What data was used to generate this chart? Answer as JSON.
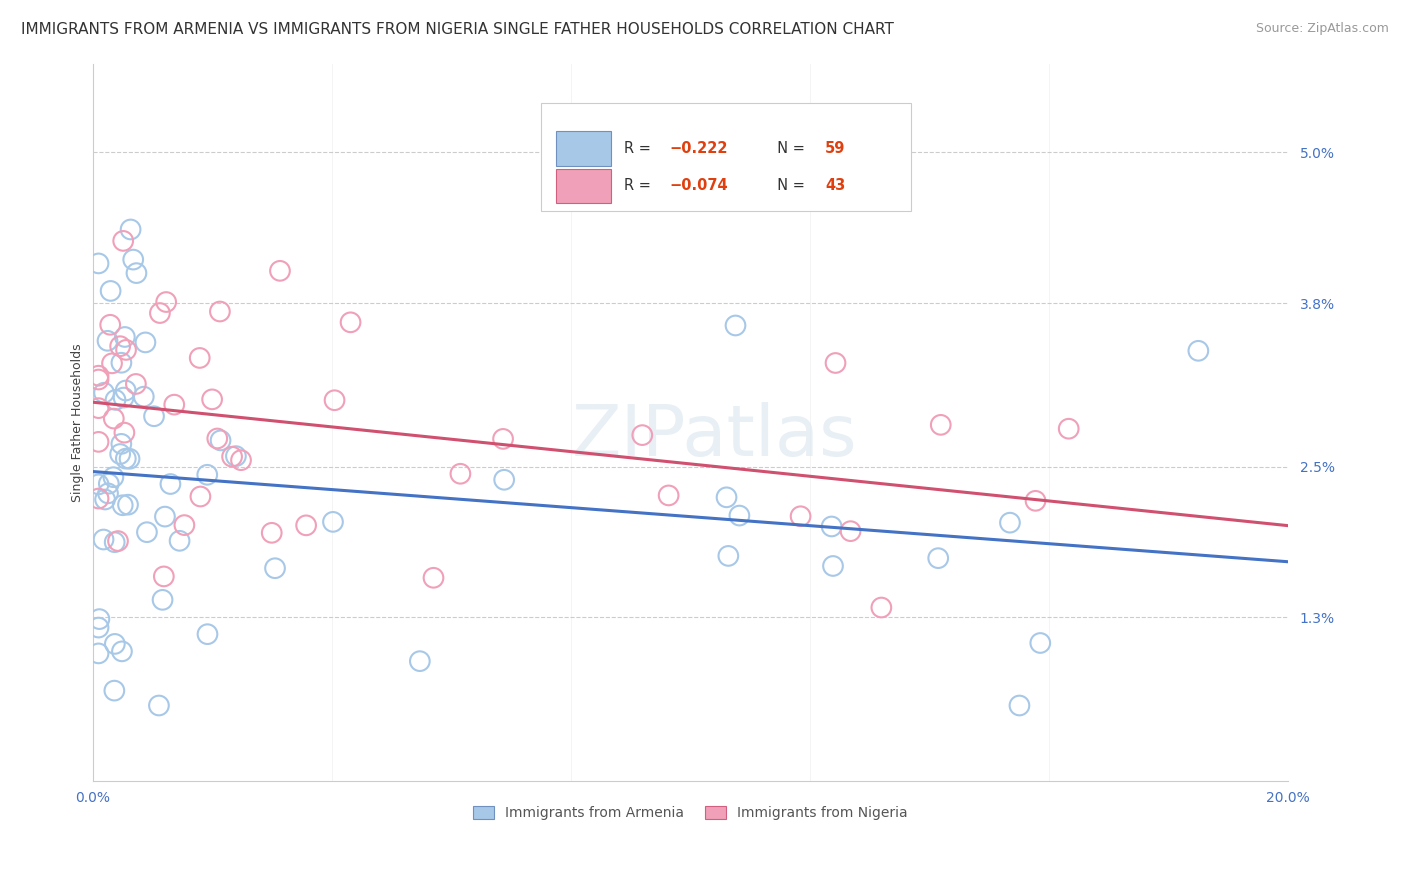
{
  "title": "IMMIGRANTS FROM ARMENIA VS IMMIGRANTS FROM NIGERIA SINGLE FATHER HOUSEHOLDS CORRELATION CHART",
  "source": "Source: ZipAtlas.com",
  "ylabel": "Single Father Households",
  "ytick_labels": [
    "1.3%",
    "2.5%",
    "3.8%",
    "5.0%"
  ],
  "ytick_values": [
    0.013,
    0.025,
    0.038,
    0.05
  ],
  "xlim": [
    0.0,
    0.2
  ],
  "ylim": [
    0.0,
    0.057
  ],
  "armenia_color": "#a8c8e8",
  "nigeria_color": "#f0a0b8",
  "line_armenia_color": "#4472c4",
  "line_nigeria_color": "#d05070",
  "watermark": "ZIPatlas",
  "title_fontsize": 11,
  "source_fontsize": 9,
  "axis_label_fontsize": 9,
  "tick_fontsize": 10,
  "watermark_fontsize": 52,
  "background_color": "#ffffff",
  "grid_color": "#cccccc"
}
